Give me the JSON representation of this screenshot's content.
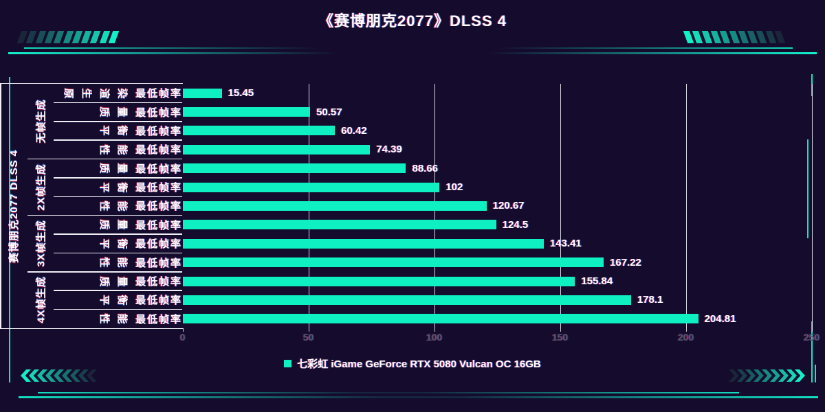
{
  "header": {
    "title": "《赛博朋克2077》DLSS 4"
  },
  "colors": {
    "background": "#150b2d",
    "bar": "#0ef0c2",
    "accent": "#12e6c5",
    "grid_line": "#eef0f6",
    "tick_label": "#56566a",
    "text": "#ffffff"
  },
  "chart_data": {
    "type": "bar",
    "orientation": "horizontal",
    "title": "《赛博朋克2077》DLSS 4",
    "y_axis_title": "赛博朋克2077 DLSS 4",
    "metric_label": "最低帧率",
    "xlim": [
      0,
      250
    ],
    "x_ticks": [
      "0",
      "50",
      "100",
      "150",
      "200",
      "250"
    ],
    "grid": true,
    "legend": {
      "position": "bottom",
      "entries": [
        {
          "label": "七彩虹 iGame GeForce RTX 5080 Vulcan OC 16GB",
          "color": "#0ef0c2"
        }
      ]
    },
    "groups": [
      {
        "label": "无帧生成",
        "rows": [
          {
            "mode": "原生渲染",
            "metric": "最低帧率",
            "value": 15.45,
            "value_label": "15.45"
          },
          {
            "mode": "质量",
            "metric": "最低帧率",
            "value": 50.57,
            "value_label": "50.57"
          },
          {
            "mode": "平衡",
            "metric": "最低帧率",
            "value": 60.42,
            "value_label": "60.42"
          },
          {
            "mode": "性能",
            "metric": "最低帧率",
            "value": 74.39,
            "value_label": "74.39"
          }
        ]
      },
      {
        "label": "2X帧生成",
        "rows": [
          {
            "mode": "质量",
            "metric": "最低帧率",
            "value": 88.66,
            "value_label": "88.66"
          },
          {
            "mode": "平衡",
            "metric": "最低帧率",
            "value": 102,
            "value_label": "102"
          },
          {
            "mode": "性能",
            "metric": "最低帧率",
            "value": 120.67,
            "value_label": "120.67"
          }
        ]
      },
      {
        "label": "3X帧生成",
        "rows": [
          {
            "mode": "质量",
            "metric": "最低帧率",
            "value": 124.5,
            "value_label": "124.5"
          },
          {
            "mode": "平衡",
            "metric": "最低帧率",
            "value": 143.41,
            "value_label": "143.41"
          },
          {
            "mode": "性能",
            "metric": "最低帧率",
            "value": 167.22,
            "value_label": "167.22"
          }
        ]
      },
      {
        "label": "4X帧生成",
        "rows": [
          {
            "mode": "质量",
            "metric": "最低帧率",
            "value": 155.84,
            "value_label": "155.84"
          },
          {
            "mode": "平衡",
            "metric": "最低帧率",
            "value": 178.1,
            "value_label": "178.1"
          },
          {
            "mode": "性能",
            "metric": "最低帧率",
            "value": 204.81,
            "value_label": "204.81"
          }
        ]
      }
    ]
  }
}
